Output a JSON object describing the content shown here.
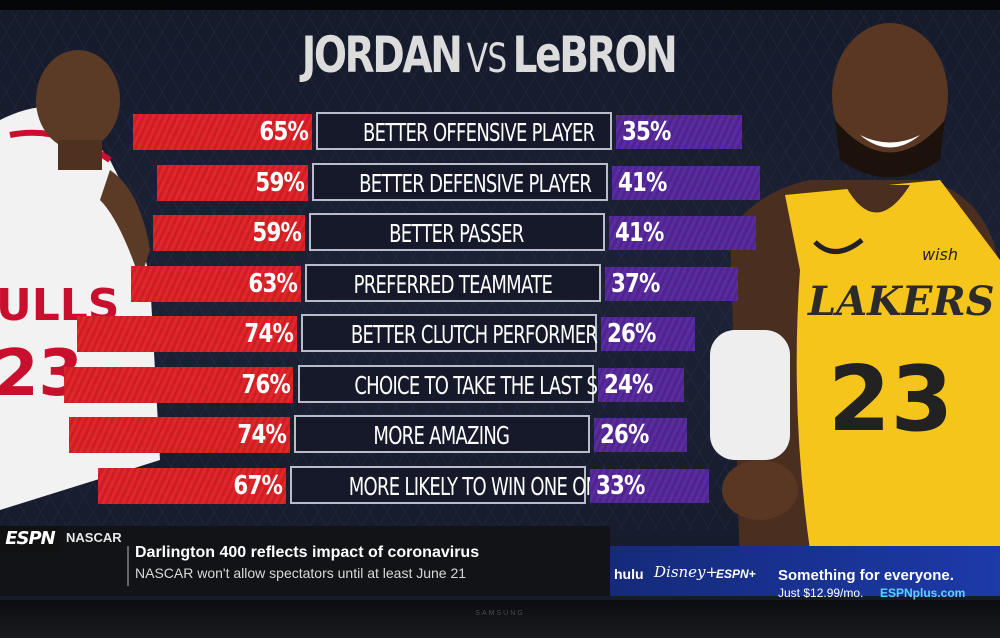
{
  "title": {
    "left": "JORDAN",
    "vs": "VS",
    "right": "LeBRON"
  },
  "jordan_jersey": {
    "team": "ULLS",
    "number": "23"
  },
  "lebron_jersey": {
    "team": "LAKERS",
    "number": "23",
    "sponsor": "wish"
  },
  "chart_data": {
    "type": "bar",
    "title": "JORDAN VS LeBRON",
    "categories": [
      "BETTER OFFENSIVE PLAYER",
      "BETTER DEFENSIVE PLAYER",
      "BETTER PASSER",
      "PREFERRED TEAMMATE",
      "BETTER CLUTCH PERFORMER",
      "CHOICE TO TAKE THE LAST SHOT",
      "MORE AMAZING",
      "MORE LIKELY TO WIN ONE ON ONE"
    ],
    "series": [
      {
        "name": "JORDAN",
        "values": [
          65,
          59,
          59,
          63,
          74,
          76,
          74,
          67
        ],
        "labels": [
          "65%",
          "59%",
          "59%",
          "63%",
          "74%",
          "76%",
          "74%",
          "67%"
        ]
      },
      {
        "name": "LeBRON",
        "values": [
          35,
          41,
          41,
          37,
          26,
          24,
          26,
          33
        ],
        "labels": [
          "35%",
          "41%",
          "41%",
          "37%",
          "26%",
          "24%",
          "26%",
          "33%"
        ]
      }
    ],
    "colors": {
      "jordan": "#e3262b",
      "lebron": "#5a2c9e"
    },
    "unit": "%"
  },
  "ticker": {
    "logo": "ESPN",
    "category": "NASCAR",
    "headline": "Darlington 400 reflects impact of coronavirus",
    "subline": "NASCAR won't allow spectators until at least June 21"
  },
  "ad": {
    "hulu": "hulu",
    "disney": "Disney+",
    "espn": "ESPN+",
    "headline": "Something for everyone.",
    "price": "Just $12.99/mo.",
    "site": "ESPNplus.com"
  },
  "tv_brand": "SAMSUNG"
}
